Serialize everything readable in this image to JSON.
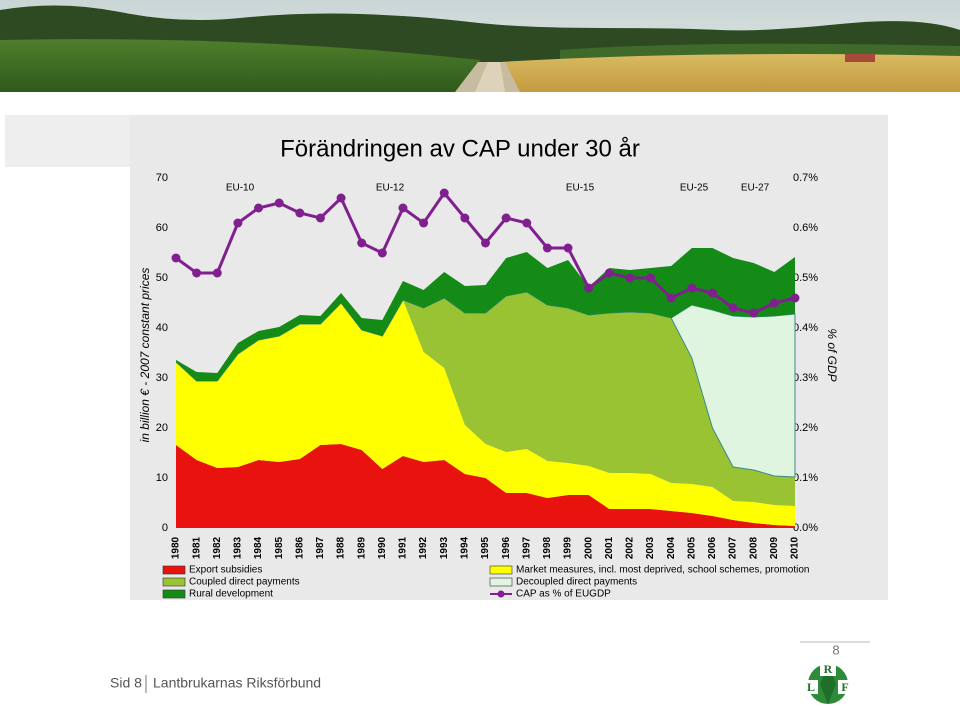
{
  "chart_data": {
    "type": "stacked-area",
    "title": "Förändringen av CAP under 30 år",
    "y_label": "in billion € - 2007 constant prices",
    "y2_label": "% of GDP",
    "annotations": [
      "EU-10",
      "EU-12",
      "EU-15",
      "EU-25",
      "EU-27"
    ],
    "x": [
      1980,
      1981,
      1982,
      1983,
      1984,
      1985,
      1986,
      1987,
      1988,
      1989,
      1990,
      1991,
      1992,
      1993,
      1994,
      1995,
      1996,
      1997,
      1998,
      1999,
      2000,
      2001,
      2002,
      2003,
      2004,
      2005,
      2006,
      2007,
      2008,
      2009,
      2010
    ],
    "ylim": [
      0,
      70
    ],
    "yticks": [
      0,
      10,
      20,
      30,
      40,
      50,
      60,
      70
    ],
    "y2lim": [
      0,
      0.7
    ],
    "y2ticks": [
      {
        "value": 0,
        "label": "0.0%"
      },
      {
        "value": 0.1,
        "label": "0.1%"
      },
      {
        "value": 0.2,
        "label": "0.2%"
      },
      {
        "value": 0.3,
        "label": "0.3%"
      },
      {
        "value": 0.4,
        "label": "0.4%"
      },
      {
        "value": 0.5,
        "label": "0.5%"
      },
      {
        "value": 0.6,
        "label": "0.6%"
      },
      {
        "value": 0.7,
        "label": "0.7%"
      }
    ],
    "series": [
      {
        "name": "Export subsidies",
        "color": "#e8120e",
        "values": [
          16.6,
          13.6,
          12,
          12.2,
          13.6,
          13.2,
          13.8,
          16.6,
          16.8,
          15.6,
          11.8,
          14.4,
          13.2,
          13.6,
          10.8,
          10,
          7,
          7,
          6,
          6.6,
          6.6,
          3.8,
          3.8,
          3.8,
          3.4,
          3,
          2.4,
          1.6,
          1,
          0.6,
          0.4
        ]
      },
      {
        "name": "Market measures, incl. most deprived, school schemes, promotion",
        "color": "#ffff00",
        "values": [
          16.6,
          15.8,
          17.4,
          22.6,
          24,
          25.2,
          27,
          24.2,
          28.2,
          24,
          26.6,
          31.2,
          22,
          18.4,
          9.8,
          6.8,
          8.2,
          8.8,
          7.4,
          6.4,
          5.8,
          7.2,
          7.2,
          7,
          5.6,
          5.8,
          5.8,
          3.8,
          4.2,
          4,
          4
        ]
      },
      {
        "name": "Coupled direct payments",
        "color": "#99c333",
        "values": [
          0,
          0,
          0,
          0,
          0,
          0,
          0,
          0,
          0,
          0,
          0,
          0,
          8.8,
          14,
          22.4,
          26.2,
          31.2,
          31.4,
          31.2,
          31,
          30.2,
          32,
          32.2,
          32.2,
          33,
          25.2,
          11.8,
          6.8,
          6.4,
          5.8,
          5.8
        ]
      },
      {
        "name": "Decoupled direct payments",
        "color": "#dff5e0",
        "values": [
          0,
          0,
          0,
          0,
          0,
          0,
          0,
          0,
          0,
          0,
          0,
          0,
          0,
          0,
          0,
          0,
          0,
          0,
          0,
          0,
          0,
          0,
          0,
          0,
          0,
          10.6,
          23.6,
          30.2,
          30.6,
          32,
          32.6
        ]
      },
      {
        "name": "Rural development",
        "color": "#148a17",
        "values": [
          0.4,
          1.8,
          1.6,
          2.2,
          1.8,
          1.8,
          1.8,
          1.6,
          2,
          2.4,
          3.2,
          3.8,
          3.6,
          5.2,
          5.4,
          5.6,
          7.6,
          8,
          7.4,
          9.6,
          5.6,
          9,
          8.4,
          9,
          10.4,
          11.4,
          12.4,
          11.6,
          10.8,
          8.8,
          11.4
        ]
      },
      {
        "name": "CAP as % of EUGDP",
        "color": "#80208f",
        "type": "line",
        "axis": "y2",
        "values": [
          0.54,
          0.51,
          0.51,
          0.61,
          0.64,
          0.65,
          0.63,
          0.62,
          0.66,
          0.57,
          0.55,
          0.64,
          0.61,
          0.67,
          0.62,
          0.57,
          0.62,
          0.61,
          0.56,
          0.56,
          0.48,
          0.51,
          0.5,
          0.5,
          0.46,
          0.48,
          0.47,
          0.44,
          0.43,
          0.45,
          0.46
        ]
      }
    ]
  },
  "footer": {
    "page": "Sid 8",
    "organization": "Lantbrukarnas Riksförbund",
    "slide_number": "8",
    "logo_letters": [
      "R",
      "L",
      "F"
    ]
  }
}
